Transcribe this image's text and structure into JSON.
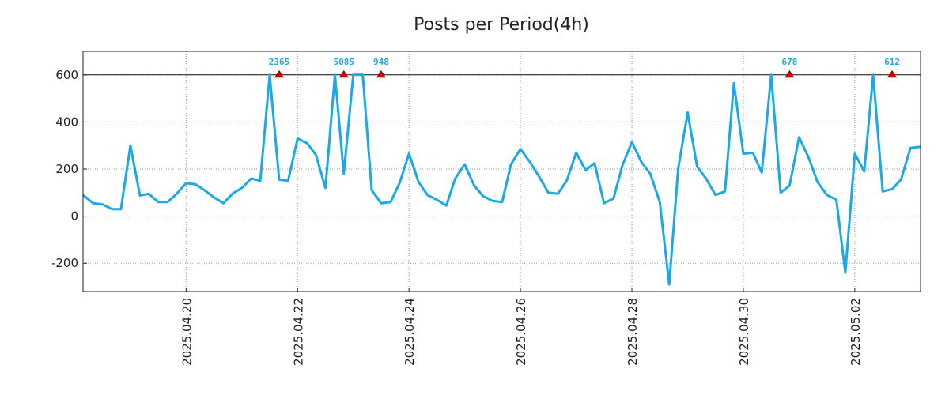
{
  "chart_data": {
    "type": "line",
    "title": "Posts per Period(4h)",
    "xlabel": "",
    "ylabel": "",
    "x_unit": "days since 2025.04.18 00:00 (4h buckets)",
    "xlim": [
      0.15,
      15.18
    ],
    "ylim": [
      -320,
      700
    ],
    "grid": true,
    "clip_line": 600,
    "line_color": "#1aa9e8",
    "marker_color": "#dd0000",
    "y_ticks": [
      {
        "value": 600,
        "label": "600"
      },
      {
        "value": 400,
        "label": "400"
      },
      {
        "value": 200,
        "label": "200"
      },
      {
        "value": 0,
        "label": "0"
      },
      {
        "value": -200,
        "label": "-200"
      }
    ],
    "x_ticks": [
      {
        "value": 2,
        "label": "2025.04.20"
      },
      {
        "value": 4,
        "label": "2025.04.22"
      },
      {
        "value": 6,
        "label": "2025.04.24"
      },
      {
        "value": 8,
        "label": "2025.04.26"
      },
      {
        "value": 10,
        "label": "2025.04.28"
      },
      {
        "value": 12,
        "label": "2025.04.30"
      },
      {
        "value": 14,
        "label": "2025.05.02"
      }
    ],
    "series": [
      {
        "name": "Posts per Period(4h)",
        "x": [
          0.15,
          0.33,
          0.5,
          0.67,
          0.83,
          1.0,
          1.17,
          1.33,
          1.5,
          1.67,
          1.83,
          2.0,
          2.17,
          2.33,
          2.5,
          2.67,
          2.83,
          3.0,
          3.17,
          3.33,
          3.5,
          3.67,
          3.83,
          4.0,
          4.17,
          4.33,
          4.5,
          4.67,
          4.83,
          5.0,
          5.17,
          5.33,
          5.5,
          5.67,
          5.83,
          6.0,
          6.17,
          6.33,
          6.5,
          6.67,
          6.83,
          7.0,
          7.17,
          7.33,
          7.5,
          7.67,
          7.83,
          8.0,
          8.17,
          8.33,
          8.5,
          8.67,
          8.83,
          9.0,
          9.17,
          9.33,
          9.5,
          9.67,
          9.83,
          10.0,
          10.17,
          10.33,
          10.5,
          10.67,
          10.83,
          11.0,
          11.17,
          11.33,
          11.5,
          11.67,
          11.83,
          12.0,
          12.17,
          12.33,
          12.5,
          12.67,
          12.83,
          13.0,
          13.17,
          13.33,
          13.5,
          13.67,
          13.83,
          14.0,
          14.17,
          14.33,
          14.5,
          14.67,
          14.83,
          15.0,
          15.18
        ],
        "values": [
          90,
          55,
          50,
          30,
          30,
          300,
          88,
          95,
          60,
          60,
          95,
          140,
          135,
          110,
          80,
          55,
          95,
          120,
          160,
          150,
          600,
          155,
          150,
          330,
          310,
          260,
          120,
          600,
          180,
          600,
          600,
          110,
          55,
          60,
          140,
          265,
          145,
          90,
          70,
          45,
          160,
          220,
          130,
          85,
          65,
          60,
          220,
          285,
          230,
          170,
          100,
          95,
          150,
          270,
          195,
          225,
          55,
          75,
          215,
          315,
          230,
          180,
          60,
          -290,
          200,
          440,
          210,
          160,
          90,
          105,
          565,
          265,
          270,
          185,
          600,
          100,
          130,
          335,
          250,
          145,
          90,
          70,
          -240,
          265,
          190,
          600,
          105,
          115,
          155,
          290,
          295
        ]
      }
    ],
    "annotations": [
      {
        "x": 3.67,
        "y": 600,
        "label": "2365"
      },
      {
        "x": 4.83,
        "y": 600,
        "label": "5085"
      },
      {
        "x": 5.5,
        "y": 600,
        "label": "948"
      },
      {
        "x": 12.83,
        "y": 600,
        "label": "678"
      },
      {
        "x": 14.67,
        "y": 600,
        "label": "612"
      }
    ]
  }
}
